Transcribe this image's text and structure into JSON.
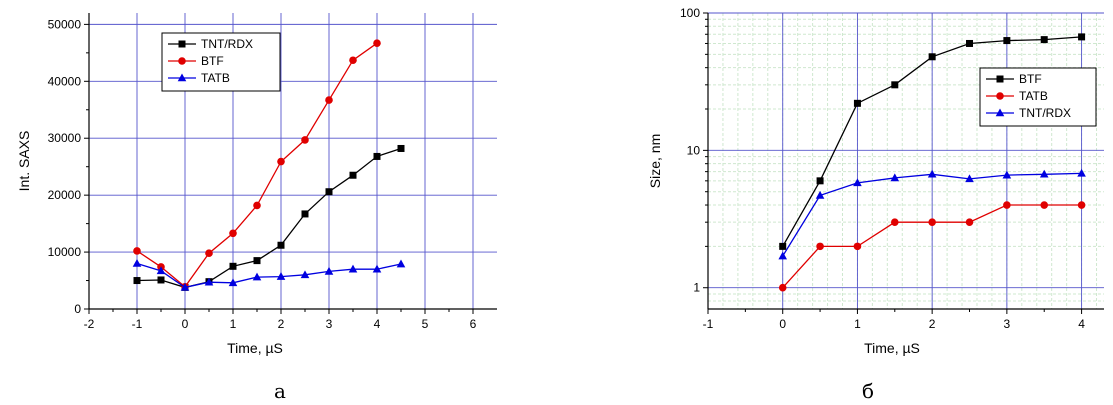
{
  "chart_data": [
    {
      "type": "line",
      "panel_label": "а",
      "xlabel": "Time, µS",
      "ylabel": "Int. SAXS",
      "xlim": [
        -2,
        6.5
      ],
      "ylim": [
        0,
        52000
      ],
      "xticks": [
        -2,
        -1,
        0,
        1,
        2,
        3,
        4,
        5,
        6
      ],
      "yticks": [
        0,
        10000,
        20000,
        30000,
        40000,
        50000
      ],
      "grid": true,
      "legend": "top-left",
      "series": [
        {
          "name": "TNT/RDX",
          "color": "#000000",
          "marker": "square",
          "x": [
            -1,
            -0.5,
            0,
            0.5,
            1,
            1.5,
            2,
            2.5,
            3,
            3.5,
            4,
            4.5
          ],
          "y": [
            5000,
            5100,
            3800,
            4800,
            7500,
            8500,
            11200,
            16700,
            20600,
            23500,
            26800,
            28200
          ]
        },
        {
          "name": "BTF",
          "color": "#e00000",
          "marker": "circle",
          "x": [
            -1,
            -0.5,
            0,
            0.5,
            1,
            1.5,
            2,
            2.5,
            3,
            3.5,
            4
          ],
          "y": [
            10200,
            7400,
            3900,
            9800,
            13300,
            18200,
            25900,
            29700,
            36700,
            43700,
            46700
          ]
        },
        {
          "name": "TATB",
          "color": "#0000e0",
          "marker": "triangle",
          "x": [
            -1,
            -0.5,
            0,
            0.5,
            1,
            1.5,
            2,
            2.5,
            3,
            3.5,
            4,
            4.5
          ],
          "y": [
            8000,
            6700,
            3800,
            4700,
            4600,
            5600,
            5700,
            6000,
            6600,
            7000,
            7000,
            7900
          ]
        }
      ]
    },
    {
      "type": "line",
      "panel_label": "б",
      "xlabel": "Time, µS",
      "ylabel": "Size, nm",
      "xlim": [
        -1,
        4.3
      ],
      "ylim": [
        0.7,
        100
      ],
      "yscale": "log",
      "xticks": [
        -1,
        0,
        1,
        2,
        3,
        4
      ],
      "yticks": [
        1,
        10,
        100
      ],
      "grid": true,
      "legend": "right",
      "series": [
        {
          "name": "BTF",
          "color": "#000000",
          "marker": "square",
          "x": [
            0,
            0.5,
            1,
            1.5,
            2,
            2.5,
            3,
            3.5,
            4
          ],
          "y": [
            2,
            6,
            22,
            30,
            48,
            60,
            63,
            64,
            67
          ]
        },
        {
          "name": "TATB",
          "color": "#e00000",
          "marker": "circle",
          "x": [
            0,
            0.5,
            1,
            1.5,
            2,
            2.5,
            3,
            3.5,
            4
          ],
          "y": [
            1,
            2,
            2,
            3,
            3,
            3,
            4,
            4,
            4
          ]
        },
        {
          "name": "TNT/RDX",
          "color": "#0000e0",
          "marker": "triangle",
          "x": [
            0,
            0.5,
            1,
            1.5,
            2,
            2.5,
            3,
            3.5,
            4
          ],
          "y": [
            1.7,
            4.7,
            5.8,
            6.3,
            6.7,
            6.2,
            6.6,
            6.7,
            6.8
          ]
        }
      ]
    }
  ]
}
